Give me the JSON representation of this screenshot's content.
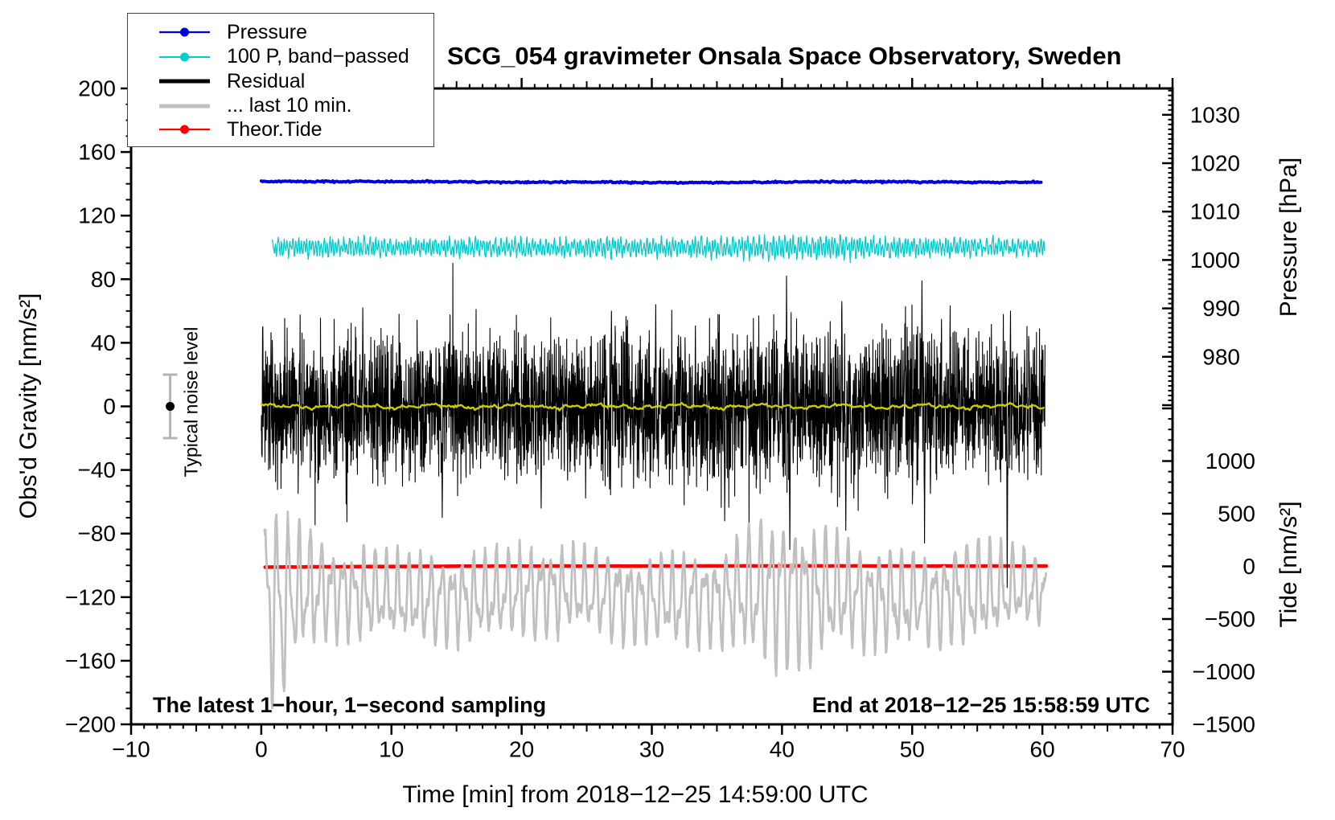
{
  "title": "SCG_054 gravimeter Onsala Space Observatory, Sweden",
  "annotations": {
    "sampling_note": "The latest 1−hour, 1−second sampling",
    "end_note": "End at 2018−12−25 15:58:59 UTC",
    "noise_label": "Typical noise level"
  },
  "legend": {
    "items": [
      {
        "label": "Pressure",
        "color": "#0000dd",
        "lw": 2.2,
        "dot": true
      },
      {
        "label": "100 P, band−passed",
        "color": "#00cccc",
        "lw": 2.0,
        "dot": true
      },
      {
        "label": "Residual",
        "color": "#000000",
        "lw": 5.0,
        "dot": false
      },
      {
        "label": "... last 10 min.",
        "color": "#c0c0c0",
        "lw": 5.0,
        "dot": false
      },
      {
        "label": "Theor.Tide",
        "color": "#ff0000",
        "lw": 2.2,
        "dot": true
      }
    ]
  },
  "chart_data": {
    "type": "line",
    "title": "SCG_054 gravimeter Onsala Space Observatory, Sweden",
    "xlabel": "Time [min] from 2018−12−25 14:59:00 UTC",
    "x_range": [
      -10,
      70
    ],
    "x_major_ticks": [
      -10,
      0,
      10,
      20,
      30,
      40,
      50,
      60,
      70
    ],
    "x_medium_step": 5,
    "x_minor_step": 1,
    "grid": false,
    "legend_position": "top-left",
    "axes": {
      "gravity": {
        "title": "Obs'd Gravity [nm/s²]",
        "side": "left",
        "range": [
          -200,
          200
        ],
        "major_ticks": [
          -200,
          -160,
          -120,
          -80,
          -40,
          0,
          40,
          80,
          120,
          160,
          200
        ],
        "minor_step": 10
      },
      "pressure": {
        "title": "Pressure [hPa]",
        "side": "right-upper",
        "major_ticks": [
          980,
          990,
          1000,
          1010,
          1020,
          1030
        ],
        "minor_step": 1,
        "visible_range": [
          969.5,
          1035.5
        ]
      },
      "tide": {
        "title": "Tide [nm/s²]",
        "side": "right-lower",
        "major_ticks": [
          -1500,
          -1000,
          -500,
          0,
          500,
          1000
        ],
        "minor_step": 100,
        "visible_range": [
          -1500,
          1500
        ]
      }
    },
    "noise_marker": {
      "label": "Typical noise level",
      "x_min": -7,
      "value": 0,
      "error": 20,
      "units": "nm/s²",
      "bar_color": "#b4b4b4",
      "dot_color": "#000000"
    },
    "series": [
      {
        "name": "Pressure",
        "axis": "pressure",
        "color": "#0000dd",
        "width": 4,
        "x_start": 0,
        "x_end": 60,
        "anchor_step_min": 5,
        "anchors_hpa": [
          1016.25,
          1016.2,
          1016.2,
          1016.15,
          1016.05,
          1016.1,
          1016.0,
          1016.0,
          1016.1,
          1016.2,
          1016.15,
          1016.05,
          1016.1
        ],
        "jitter": 0.08
      },
      {
        "name": "100 P, band−passed",
        "axis": "gravity",
        "color": "#00cccc",
        "width": 1.3,
        "x_start": 0.85,
        "x_end": 60.2,
        "center": 100,
        "base_amp": 4.2,
        "anchor_step_min": 5,
        "amp_envelope": [
          0.9,
          1.0,
          1.0,
          0.95,
          1.0,
          1.05,
          1.0,
          1.1,
          1.3,
          1.2,
          1.0,
          0.95,
          0.9
        ]
      },
      {
        "name": "Residual",
        "axis": "gravity",
        "color": "#000000",
        "width": 1.1,
        "x_start": 0,
        "x_end": 60.2,
        "center": 0,
        "sampling_s": 1,
        "std": 22,
        "anchor_step_min": 5,
        "amp_envelope": [
          1.0,
          0.95,
          1.0,
          1.0,
          0.95,
          1.0,
          1.0,
          1.05,
          1.1,
          1.05,
          1.15,
          1.0,
          1.0
        ],
        "spikes": [
          [
            7.8,
            62
          ],
          [
            13.9,
            -70
          ],
          [
            21.5,
            -64
          ],
          [
            26.9,
            60
          ],
          [
            30.3,
            64
          ],
          [
            35.6,
            -72
          ],
          [
            40.35,
            82
          ],
          [
            40.6,
            -90
          ],
          [
            44.6,
            66
          ],
          [
            44.9,
            -78
          ],
          [
            50.75,
            79
          ],
          [
            50.95,
            -86
          ],
          [
            57.3,
            -114
          ],
          [
            57.55,
            60
          ]
        ]
      },
      {
        "name": "Residual smoothed (yellow, unlabeled)",
        "axis": "gravity",
        "color": "#cbcb00",
        "width": 2.4,
        "x_start": 0,
        "x_end": 60.2,
        "center": 0,
        "amp": 1.6
      },
      {
        "name": "... last 10 min.",
        "axis": "gravity",
        "color": "#c0c0c0",
        "width": 2.8,
        "x_start": 0.25,
        "x_end": 60.3,
        "center": -119,
        "anchor_step_min": 5,
        "amp_envelope": [
          52,
          26,
          25,
          24,
          26,
          24,
          24,
          26,
          46,
          30,
          26,
          30,
          18
        ],
        "start_burst": {
          "t_center": 1.5,
          "width_min": 1.0,
          "down_bias": -24
        },
        "periods_min": [
          0.85,
          0.45
        ]
      },
      {
        "name": "Theor.Tide",
        "axis": "tide",
        "color": "#ff0000",
        "width": 4.5,
        "x_start": 0.3,
        "x_end": 60.4,
        "anchor_step_min": 5,
        "anchors_tide": [
          -8,
          -4,
          -1,
          1,
          2,
          3,
          3,
          4,
          4,
          4,
          3,
          3,
          3
        ]
      }
    ]
  }
}
